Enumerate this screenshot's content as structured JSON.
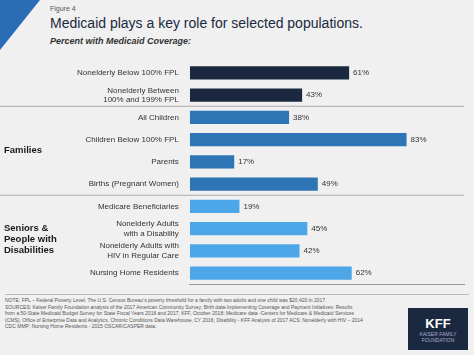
{
  "chart_data": {
    "type": "bar",
    "orientation": "horizontal",
    "title": "Medicaid plays a key role for selected populations.",
    "subtitle": "Percent with Medicaid Coverage:",
    "categories": [
      "Nonelderly Below 100% FPL",
      "Nonelderly Between\n100% and 199% FPL",
      "All Children",
      "Children Below 100% FPL",
      "Parents",
      "Births (Pregnant Women)",
      "Medicare Beneficiaries",
      "Nonelderly Adults\nwith a Disability",
      "Nonelderly Adults with\nHIV in Regular Care",
      "Nursing Home Residents"
    ],
    "values": [
      61,
      43,
      38,
      83,
      17,
      49,
      19,
      45,
      42,
      62
    ],
    "value_labels": [
      "61%",
      "43%",
      "38%",
      "83%",
      "17%",
      "49%",
      "19%",
      "45%",
      "42%",
      "62%"
    ],
    "colors": [
      "#1a2940",
      "#1a2940",
      "#2e75b6",
      "#2e75b6",
      "#2e75b6",
      "#2e75b6",
      "#4da6e8",
      "#4da6e8",
      "#4da6e8",
      "#4da6e8"
    ],
    "xlim": [
      0,
      105
    ],
    "tick_labels": "y",
    "grid": false,
    "data_labels": true,
    "annotations": [
      {
        "kind": "figure_label",
        "text": "Figure 4"
      },
      {
        "kind": "section",
        "text": "Families",
        "categories": [
          "All Children",
          "Children Below 100% FPL",
          "Parents",
          "Births (Pregnant Women)"
        ]
      },
      {
        "kind": "section",
        "text": "Seniors &\nPeople with\nDisabilities",
        "categories": [
          "Medicare Beneficiaries",
          "Nonelderly Adults\nwith a Disability",
          "Nonelderly Adults with\nHIV in Regular Care",
          "Nursing Home Residents"
        ]
      },
      {
        "kind": "note",
        "text": "NOTE: FPL – Federal Poverty Level. The U.S. Census Bureau’s poverty threshold for a family with two adults and one child was $20,420 in 2017."
      },
      {
        "kind": "note",
        "text": "SOURCES: Kaiser Family Foundation analysis of the 2017 American Community Survey; Birth data-Implementing Coverage and Payment Initiatives: Results"
      },
      {
        "kind": "note",
        "text": "from a 50-State Medicaid Budget Survey for State Fiscal Years 2016 and 2017, KFF, October 2018; Medicare data -Centers for Medicare & Medicaid Services"
      },
      {
        "kind": "note",
        "text": "(CMS), Office of Enterprise Data and Analytics, Chronic Conditions Data Warehouse, CY 2016; Disability - KFF Analysis of 2017 ACS; Nonelderly with HIV – 2014"
      },
      {
        "kind": "note",
        "text": "CDC MMP; Nursing Home Residents - 2015 OSCAR/CASPER data."
      },
      {
        "kind": "logo",
        "text": "KFF"
      },
      {
        "kind": "logo",
        "text": "KAISER FAMILY\nFOUNDATION"
      }
    ]
  }
}
